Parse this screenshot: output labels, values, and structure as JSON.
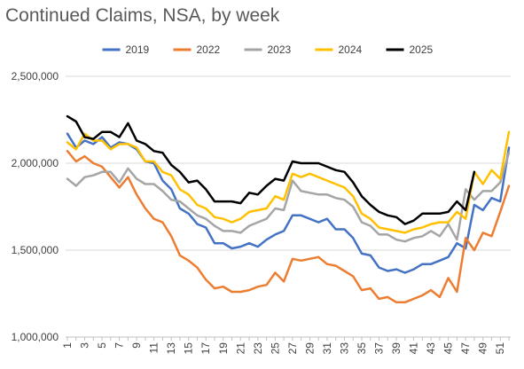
{
  "chart_data": {
    "type": "line",
    "title": "Continued Claims, NSA, by week",
    "xlabel": "",
    "ylabel": "",
    "x": [
      1,
      2,
      3,
      4,
      5,
      6,
      7,
      8,
      9,
      10,
      11,
      12,
      13,
      14,
      15,
      16,
      17,
      18,
      19,
      20,
      21,
      22,
      23,
      24,
      25,
      26,
      27,
      28,
      29,
      30,
      31,
      32,
      33,
      34,
      35,
      36,
      37,
      38,
      39,
      40,
      41,
      42,
      43,
      44,
      45,
      46,
      47,
      48,
      49,
      50,
      51,
      52
    ],
    "x_tick_labels": [
      "1",
      "3",
      "5",
      "7",
      "9",
      "11",
      "13",
      "15",
      "17",
      "19",
      "21",
      "23",
      "25",
      "27",
      "29",
      "31",
      "33",
      "35",
      "37",
      "39",
      "41",
      "43",
      "45",
      "47",
      "49",
      "51"
    ],
    "ylim": [
      1000000,
      2500000
    ],
    "y_ticks": [
      1000000,
      1500000,
      2000000,
      2500000
    ],
    "y_tick_labels": [
      "1,000,000",
      "1,500,000",
      "2,000,000",
      "2,500,000"
    ],
    "grid": "horizontal",
    "legend_position": "top",
    "series": [
      {
        "name": "2019",
        "color": "#4472C4",
        "values": [
          2170000,
          2090000,
          2130000,
          2110000,
          2150000,
          2090000,
          2120000,
          2110000,
          2080000,
          2010000,
          2000000,
          1900000,
          1850000,
          1740000,
          1710000,
          1650000,
          1630000,
          1540000,
          1540000,
          1510000,
          1520000,
          1540000,
          1520000,
          1560000,
          1590000,
          1610000,
          1700000,
          1700000,
          1680000,
          1660000,
          1680000,
          1620000,
          1620000,
          1570000,
          1480000,
          1470000,
          1400000,
          1380000,
          1390000,
          1370000,
          1390000,
          1420000,
          1420000,
          1440000,
          1460000,
          1540000,
          1510000,
          1760000,
          1730000,
          1800000,
          1780000,
          2090000
        ]
      },
      {
        "name": "2022",
        "color": "#ED7D31",
        "values": [
          2070000,
          2010000,
          2040000,
          2000000,
          1980000,
          1920000,
          1860000,
          1920000,
          1820000,
          1740000,
          1680000,
          1660000,
          1580000,
          1470000,
          1440000,
          1400000,
          1330000,
          1280000,
          1290000,
          1260000,
          1260000,
          1270000,
          1290000,
          1300000,
          1370000,
          1320000,
          1450000,
          1440000,
          1450000,
          1460000,
          1420000,
          1410000,
          1380000,
          1350000,
          1270000,
          1280000,
          1220000,
          1230000,
          1200000,
          1200000,
          1220000,
          1240000,
          1270000,
          1230000,
          1340000,
          1260000,
          1570000,
          1500000,
          1600000,
          1580000,
          1720000,
          1870000
        ]
      },
      {
        "name": "2023",
        "color": "#A5A5A5",
        "values": [
          1910000,
          1870000,
          1920000,
          1930000,
          1950000,
          1950000,
          1890000,
          1970000,
          1910000,
          1880000,
          1880000,
          1840000,
          1790000,
          1780000,
          1740000,
          1700000,
          1680000,
          1640000,
          1610000,
          1610000,
          1600000,
          1640000,
          1660000,
          1680000,
          1740000,
          1730000,
          1900000,
          1840000,
          1830000,
          1820000,
          1820000,
          1800000,
          1790000,
          1750000,
          1660000,
          1640000,
          1590000,
          1590000,
          1560000,
          1550000,
          1570000,
          1580000,
          1610000,
          1580000,
          1650000,
          1560000,
          1850000,
          1790000,
          1840000,
          1840000,
          1890000,
          2060000
        ]
      },
      {
        "name": "2024",
        "color": "#FFC000",
        "values": [
          2120000,
          2080000,
          2170000,
          2130000,
          2130000,
          2080000,
          2110000,
          2110000,
          2090000,
          2010000,
          2010000,
          1950000,
          1930000,
          1850000,
          1820000,
          1760000,
          1740000,
          1690000,
          1680000,
          1660000,
          1680000,
          1720000,
          1730000,
          1740000,
          1810000,
          1790000,
          1940000,
          1920000,
          1940000,
          1920000,
          1900000,
          1880000,
          1860000,
          1810000,
          1710000,
          1680000,
          1630000,
          1620000,
          1610000,
          1600000,
          1620000,
          1630000,
          1650000,
          1660000,
          1660000,
          1720000,
          1680000,
          1950000,
          1880000,
          1960000,
          1910000,
          2180000
        ]
      },
      {
        "name": "2025",
        "color": "#000000",
        "values": [
          2270000,
          2240000,
          2150000,
          2140000,
          2180000,
          2180000,
          2150000,
          2230000,
          2130000,
          2110000,
          2070000,
          2060000,
          1990000,
          1950000,
          1890000,
          1900000,
          1850000,
          1780000,
          1780000,
          1780000,
          1770000,
          1830000,
          1820000,
          1870000,
          1910000,
          1900000,
          2010000,
          2000000,
          2000000,
          2000000,
          1980000,
          1960000,
          1950000,
          1890000,
          1810000,
          1760000,
          1720000,
          1700000,
          1690000,
          1650000,
          1670000,
          1710000,
          1710000,
          1710000,
          1720000,
          1780000,
          1730000,
          1950000,
          null,
          null,
          null,
          null
        ]
      }
    ]
  }
}
